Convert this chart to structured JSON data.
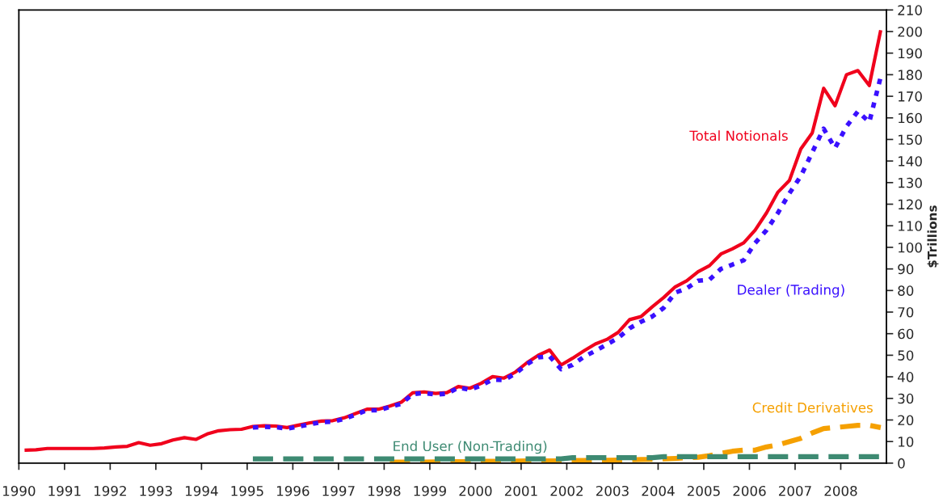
{
  "chart_data": {
    "type": "line",
    "ylabel": "$Trillions",
    "x": [
      1990.125,
      1990.375,
      1990.625,
      1990.875,
      1991.125,
      1991.375,
      1991.625,
      1991.875,
      1992.125,
      1992.375,
      1992.625,
      1992.875,
      1993.125,
      1993.375,
      1993.625,
      1993.875,
      1994.125,
      1994.375,
      1994.625,
      1994.875,
      1995.125,
      1995.375,
      1995.625,
      1995.875,
      1996.125,
      1996.375,
      1996.625,
      1996.875,
      1997.125,
      1997.375,
      1997.625,
      1997.875,
      1998.125,
      1998.375,
      1998.625,
      1998.875,
      1999.125,
      1999.375,
      1999.625,
      1999.875,
      2000.125,
      2000.375,
      2000.625,
      2000.875,
      2001.125,
      2001.375,
      2001.625,
      2001.875,
      2002.125,
      2002.375,
      2002.625,
      2002.875,
      2003.125,
      2003.375,
      2003.625,
      2003.875,
      2004.125,
      2004.375,
      2004.625,
      2004.875,
      2005.125,
      2005.375,
      2005.625,
      2005.875,
      2006.125,
      2006.375,
      2006.625,
      2006.875,
      2007.125,
      2007.375,
      2007.625,
      2007.875,
      2008.125,
      2008.375,
      2008.625,
      2008.875
    ],
    "series": [
      {
        "name": "Total Notionals",
        "color": "#f0001c",
        "line_style": "solid",
        "values": [
          6.0,
          6.2,
          6.8,
          6.8,
          6.8,
          6.8,
          6.8,
          7.0,
          7.5,
          7.8,
          9.5,
          8.3,
          9.0,
          10.7,
          11.8,
          11.0,
          13.5,
          15.0,
          15.5,
          15.7,
          17.0,
          17.3,
          17.2,
          16.5,
          17.6,
          18.7,
          19.5,
          19.7,
          21.0,
          23.0,
          25.0,
          25.0,
          26.5,
          28.2,
          32.6,
          33.0,
          32.3,
          32.7,
          35.5,
          34.7,
          37.0,
          40.1,
          39.4,
          42.2,
          46.5,
          50.0,
          52.4,
          45.5,
          48.6,
          52.0,
          55.2,
          57.3,
          60.6,
          66.5,
          67.9,
          72.5,
          76.8,
          81.7,
          84.5,
          88.7,
          91.5,
          96.9,
          99.3,
          102.1,
          108,
          116,
          125.6,
          131,
          145.6,
          153,
          173.7,
          165.6,
          180,
          181.9,
          175,
          200.6
        ]
      },
      {
        "name": "Dealer (Trading)",
        "color": "#3a10ff",
        "line_style": "dotted",
        "values": [
          null,
          null,
          null,
          null,
          null,
          null,
          null,
          null,
          null,
          null,
          null,
          null,
          null,
          null,
          null,
          null,
          null,
          null,
          null,
          null,
          16.5,
          16.8,
          16.7,
          16.0,
          17.0,
          18.0,
          19.0,
          19.2,
          20.5,
          22.5,
          24.5,
          24.5,
          26.0,
          27.5,
          32.0,
          32.5,
          31.8,
          32.2,
          35.0,
          34.0,
          36.0,
          38.7,
          38.5,
          41.5,
          45.8,
          49.0,
          49.5,
          43.5,
          45.5,
          49.3,
          52.0,
          55.0,
          58.0,
          62.5,
          65.5,
          68.0,
          72.0,
          79.0,
          81.0,
          84.5,
          85,
          90,
          92,
          94,
          102,
          108,
          116,
          125,
          133,
          144,
          155,
          146,
          156,
          163,
          158,
          179
        ]
      },
      {
        "name": "Credit Derivatives",
        "color": "#f5a000",
        "line_style": "dashed",
        "values": [
          null,
          null,
          null,
          null,
          null,
          null,
          null,
          null,
          null,
          null,
          null,
          null,
          null,
          null,
          null,
          null,
          null,
          null,
          null,
          null,
          null,
          null,
          null,
          null,
          null,
          null,
          null,
          null,
          null,
          null,
          null,
          null,
          0.5,
          0.5,
          0.5,
          0.5,
          0.6,
          0.6,
          0.7,
          0.7,
          0.8,
          0.8,
          0.9,
          0.9,
          1.0,
          1.0,
          1.0,
          1.0,
          1.2,
          1.2,
          1.3,
          1.3,
          1.4,
          1.5,
          1.7,
          1.8,
          2.0,
          2.2,
          2.5,
          2.7,
          3.5,
          4.5,
          5.5,
          6.0,
          6.0,
          7.5,
          8.5,
          10.0,
          11.5,
          14.0,
          16.0,
          16.5,
          17.0,
          17.5,
          17.5,
          16.5
        ]
      },
      {
        "name": "End User (Non-Trading)",
        "color": "#3d8a72",
        "line_style": "dashed",
        "values": [
          null,
          null,
          null,
          null,
          null,
          null,
          null,
          null,
          null,
          null,
          null,
          null,
          null,
          null,
          null,
          null,
          null,
          null,
          null,
          null,
          2,
          2,
          2,
          2,
          2,
          2,
          2,
          2,
          2,
          2,
          2,
          2,
          2,
          2,
          2,
          2,
          2,
          2,
          2,
          2,
          2,
          2,
          2,
          2,
          2,
          2,
          2,
          2,
          2.5,
          2.5,
          2.5,
          2.5,
          2.5,
          2.5,
          2.5,
          2.5,
          3,
          3,
          3,
          3,
          3,
          3,
          3,
          3,
          3,
          3,
          3,
          3,
          3,
          3,
          3,
          3,
          3,
          3,
          3,
          3
        ]
      }
    ],
    "xlim": [
      1990,
      2009
    ],
    "xticks": [
      1990,
      1991,
      1992,
      1993,
      1994,
      1995,
      1996,
      1997,
      1998,
      1999,
      2000,
      2001,
      2002,
      2003,
      2004,
      2005,
      2006,
      2007,
      2008
    ],
    "ylim": [
      0,
      210
    ],
    "yticks": [
      0,
      10,
      20,
      30,
      40,
      50,
      60,
      70,
      80,
      90,
      100,
      110,
      120,
      130,
      140,
      150,
      160,
      170,
      180,
      190,
      200,
      210
    ],
    "grid": false,
    "legend": false
  }
}
